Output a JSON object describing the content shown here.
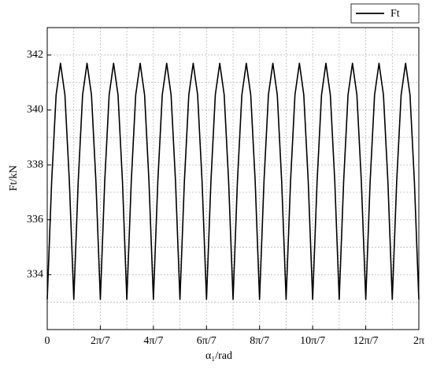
{
  "chart_data": {
    "type": "line",
    "xlabel": "α₁/rad",
    "ylabel": "Ft/kN",
    "x": [
      0,
      0.075,
      0.15,
      0.224,
      0.299,
      0.374,
      0.449,
      0.524,
      0.598,
      0.673,
      0.748,
      0.823,
      0.898,
      0.972,
      1.047,
      1.122,
      1.197,
      1.272,
      1.346,
      1.421,
      1.496,
      1.571,
      1.646,
      1.72,
      1.795,
      1.87,
      1.945,
      2.02,
      2.094,
      2.169,
      2.244,
      2.319,
      2.394,
      2.468,
      2.543,
      2.618,
      2.693,
      2.768,
      2.842,
      2.917,
      2.992,
      3.067,
      3.142,
      3.216,
      3.291,
      3.366,
      3.441,
      3.516,
      3.59,
      3.665,
      3.74,
      3.815,
      3.89,
      3.964,
      4.039,
      4.114,
      4.189,
      4.264,
      4.338,
      4.413,
      4.488,
      4.563,
      4.638,
      4.712,
      4.787,
      4.862,
      4.937,
      5.012,
      5.086,
      5.161,
      5.236,
      5.311,
      5.386,
      5.46,
      5.535,
      5.61,
      5.685,
      5.76,
      5.834,
      5.909,
      5.984,
      6.059,
      6.134,
      6.208,
      6.283
    ],
    "series": [
      {
        "name": "Ft",
        "color": "#000000",
        "values": [
          333.1,
          337.4,
          340.55,
          341.7,
          340.55,
          337.4,
          333.1,
          337.4,
          340.55,
          341.7,
          340.55,
          337.4,
          333.1,
          337.4,
          340.55,
          341.7,
          340.55,
          337.4,
          333.1,
          337.4,
          340.55,
          341.7,
          340.55,
          337.4,
          333.1,
          337.4,
          340.55,
          341.7,
          340.55,
          337.4,
          333.1,
          337.4,
          340.55,
          341.7,
          340.55,
          337.4,
          333.1,
          337.4,
          340.55,
          341.7,
          340.55,
          337.4,
          333.1,
          337.4,
          340.55,
          341.7,
          340.55,
          337.4,
          333.1,
          337.4,
          340.55,
          341.7,
          340.55,
          337.4,
          333.1,
          337.4,
          340.55,
          341.7,
          340.55,
          337.4,
          333.1,
          337.4,
          340.55,
          341.7,
          340.55,
          337.4,
          333.1,
          337.4,
          340.55,
          341.7,
          340.55,
          337.4,
          333.1,
          337.4,
          340.55,
          341.7,
          340.55,
          337.4,
          333.1,
          337.4,
          340.55,
          341.7,
          340.55,
          337.4,
          333.1
        ]
      }
    ],
    "xlim": [
      0,
      6.2832
    ],
    "xticks": [
      0,
      {
        "value": 0.8976,
        "label": "2π/7"
      },
      {
        "value": 1.7952,
        "label": "4π/7"
      },
      {
        "value": 2.6928,
        "label": "6π/7"
      },
      {
        "value": 3.5904,
        "label": "8π/7"
      },
      {
        "value": 4.488,
        "label": "10π/7"
      },
      {
        "value": 5.3856,
        "label": "12π/7"
      },
      {
        "value": 6.2832,
        "label": "2π"
      }
    ],
    "xminorticks": [
      0.4488,
      1.3464,
      2.244,
      3.1416,
      4.0392,
      4.9368,
      5.8344
    ],
    "ylim": [
      332,
      343
    ],
    "yticks": [
      334,
      336,
      338,
      340,
      342
    ],
    "yminorticks": [
      333,
      335,
      337,
      339,
      341
    ],
    "grid": true,
    "legend": "top-right"
  }
}
